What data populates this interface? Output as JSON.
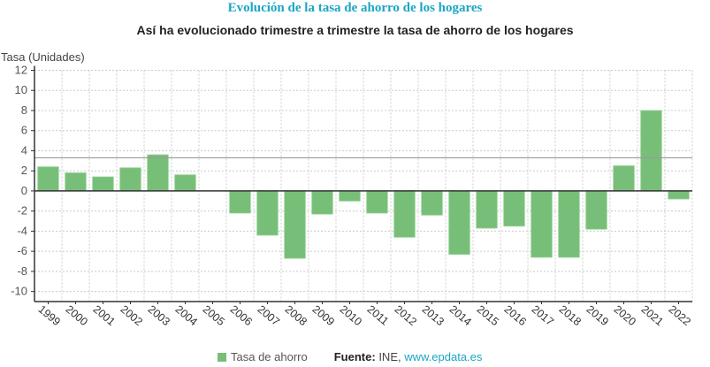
{
  "header": {
    "title": "Evolución de la tasa de ahorro de los hogares",
    "subtitle": "Así ha evolucionado trimestre a trimestre la tasa de ahorro de los hogares"
  },
  "chart_data": {
    "type": "bar",
    "ylabel": "Tasa (Unidades)",
    "xlabel": "",
    "ylim": [
      -11,
      12
    ],
    "yticks": [
      12,
      10,
      8,
      6,
      4,
      2,
      0,
      -2,
      -4,
      -6,
      -8,
      -10
    ],
    "grid": true,
    "categories": [
      "1999",
      "2000",
      "2001",
      "2002",
      "2003",
      "2004",
      "2005",
      "2006",
      "2007",
      "2008",
      "2009",
      "2010",
      "2011",
      "2012",
      "2013",
      "2014",
      "2015",
      "2016",
      "2017",
      "2018",
      "2019",
      "2020",
      "2021",
      "2022"
    ],
    "series": [
      {
        "name": "Tasa de ahorro",
        "color": "#77bf78",
        "values": [
          2.4,
          1.8,
          1.4,
          2.3,
          3.6,
          1.6,
          0,
          -2.2,
          -4.4,
          -6.7,
          -2.3,
          -1.0,
          -2.2,
          -4.6,
          -2.4,
          -6.3,
          -3.7,
          -3.5,
          -6.6,
          -6.6,
          -3.8,
          2.5,
          8.0,
          -0.8
        ]
      }
    ],
    "reference_line": 3.3,
    "legend_position": "bottom"
  },
  "footer": {
    "legend_label": "Tasa de ahorro",
    "source_label": "Fuente:",
    "source_value": "INE,",
    "source_link": "www.epdata.es"
  }
}
